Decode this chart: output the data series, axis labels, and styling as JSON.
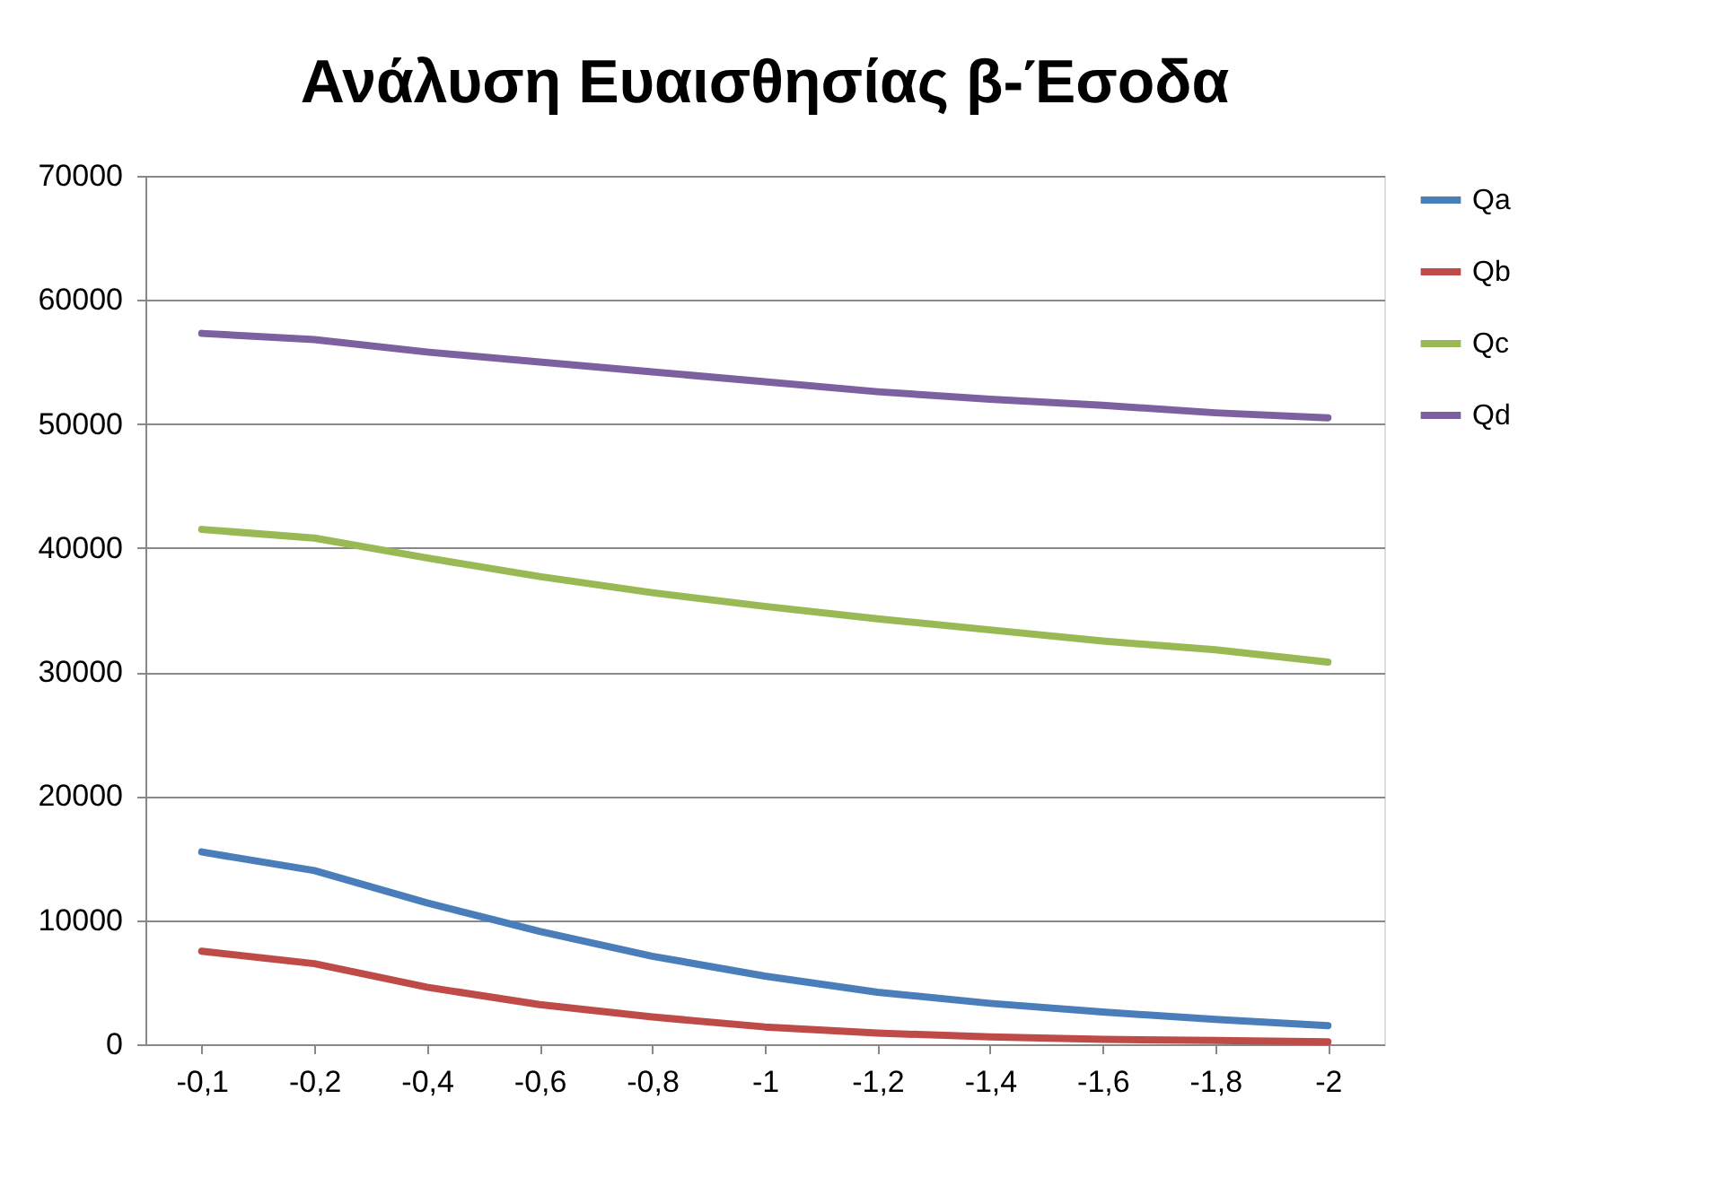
{
  "chart_data": {
    "type": "line",
    "title": "Ανάλυση Ευαισθησίας β-Έσοδα",
    "categories": [
      "-0,1",
      "-0,2",
      "-0,4",
      "-0,6",
      "-0,8",
      "-1",
      "-1,2",
      "-1,4",
      "-1,6",
      "-1,8",
      "-2"
    ],
    "series": [
      {
        "name": "Qa",
        "color": "#4a7ebb",
        "values": [
          15500,
          14000,
          11400,
          9100,
          7100,
          5500,
          4200,
          3300,
          2600,
          2000,
          1500
        ]
      },
      {
        "name": "Qb",
        "color": "#be4b48",
        "values": [
          7500,
          6500,
          4600,
          3200,
          2200,
          1400,
          900,
          600,
          400,
          300,
          200
        ]
      },
      {
        "name": "Qc",
        "color": "#98b954",
        "values": [
          41500,
          40800,
          39200,
          37700,
          36400,
          35300,
          34300,
          33400,
          32500,
          31800,
          30800
        ]
      },
      {
        "name": "Qd",
        "color": "#7d60a0",
        "values": [
          57300,
          56800,
          55800,
          55000,
          54200,
          53400,
          52600,
          52000,
          51500,
          50900,
          50500
        ]
      }
    ],
    "ylim": [
      0,
      70000
    ],
    "yticks": [
      0,
      10000,
      20000,
      30000,
      40000,
      50000,
      60000,
      70000
    ],
    "grid": "y",
    "legend": "right",
    "marker": "none",
    "line_style": "solid"
  }
}
